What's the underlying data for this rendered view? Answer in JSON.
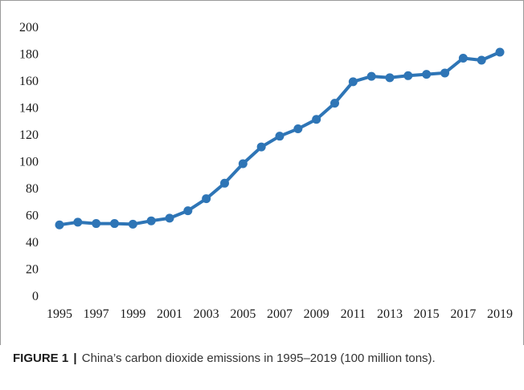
{
  "caption": {
    "label": "FIGURE 1",
    "separator": "|",
    "text": "China’s carbon dioxide emissions in 1995–2019 (100 million tons)."
  },
  "chart_data": {
    "type": "line",
    "title": "",
    "xlabel": "",
    "ylabel": "",
    "x": [
      1995,
      1996,
      1997,
      1998,
      1999,
      2000,
      2001,
      2002,
      2003,
      2004,
      2005,
      2006,
      2007,
      2008,
      2009,
      2010,
      2011,
      2012,
      2013,
      2014,
      2015,
      2016,
      2017,
      2018,
      2019
    ],
    "x_tick_labels": [
      "1995",
      "1997",
      "1999",
      "2001",
      "2003",
      "2005",
      "2007",
      "2009",
      "2011",
      "2013",
      "2015",
      "2017",
      "2019"
    ],
    "y_tick_labels": [
      "0",
      "20",
      "40",
      "60",
      "80",
      "100",
      "120",
      "140",
      "160",
      "180",
      "200"
    ],
    "ylim": [
      0,
      200
    ],
    "grid": false,
    "series": [
      {
        "values": [
          53,
          55,
          54,
          54,
          53.5,
          56,
          58,
          63.5,
          72.5,
          84,
          98.5,
          111,
          119,
          124.5,
          131.5,
          143.5,
          159.5,
          163.5,
          162.5,
          164,
          165,
          166,
          177,
          175.5,
          181.5
        ],
        "color": "#2e75b6"
      }
    ]
  }
}
